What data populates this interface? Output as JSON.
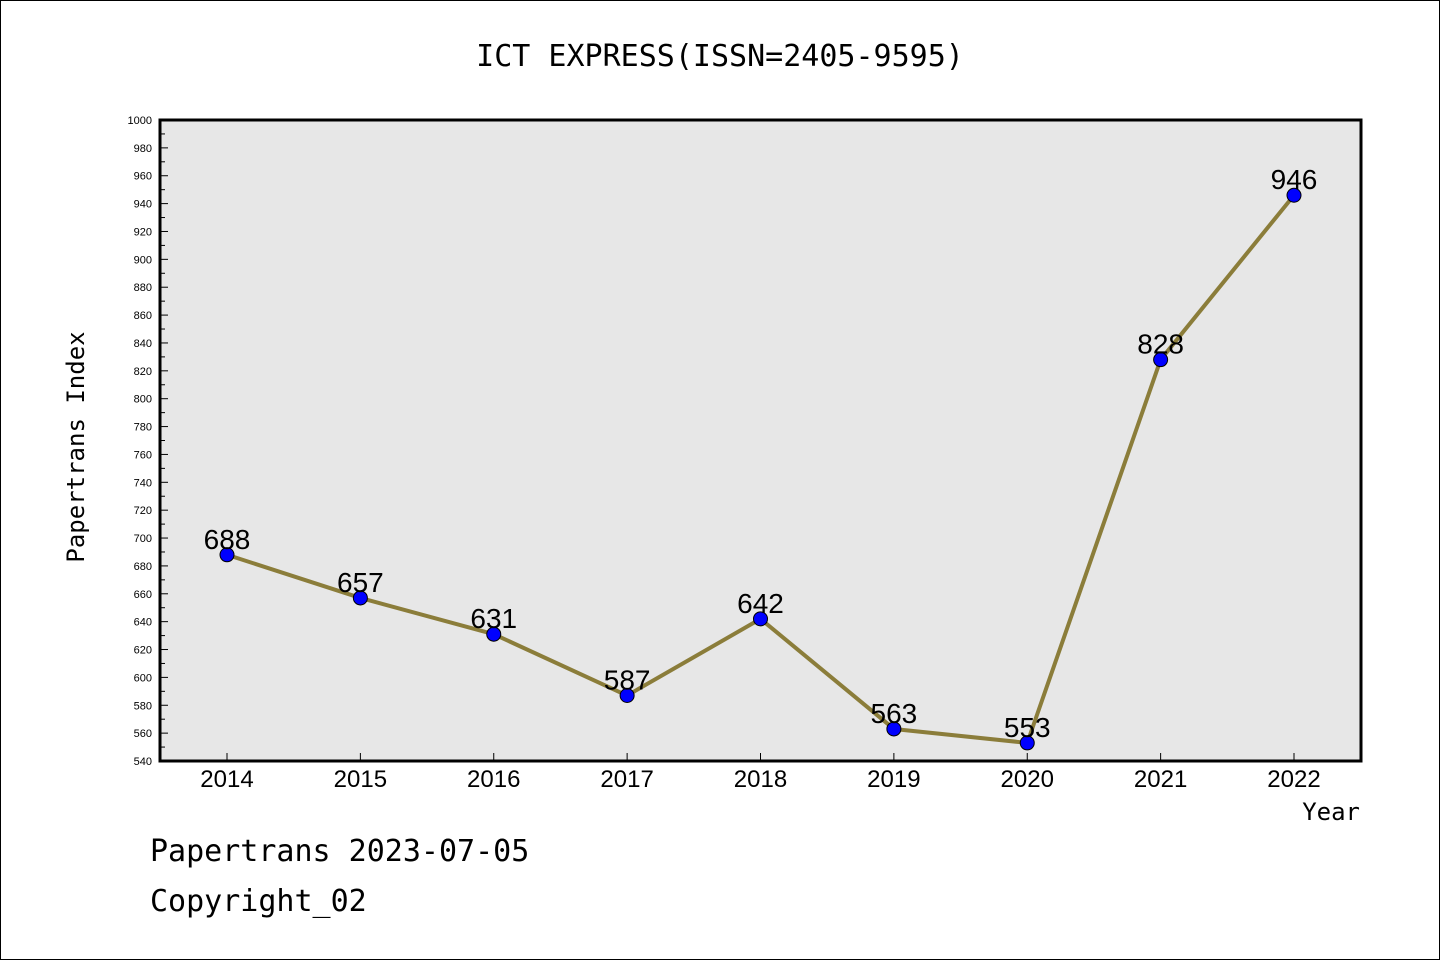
{
  "chart_data": {
    "type": "line",
    "title": "ICT EXPRESS(ISSN=2405-9595)",
    "xlabel": "Year",
    "ylabel": "Papertrans Index",
    "categories": [
      "2014",
      "2015",
      "2016",
      "2017",
      "2018",
      "2019",
      "2020",
      "2021",
      "2022"
    ],
    "series": [
      {
        "values": [
          688,
          657,
          631,
          587,
          642,
          563,
          553,
          828,
          946
        ]
      }
    ],
    "ylim": [
      540,
      1000
    ],
    "ytick_step": 20,
    "line_color": "#8b7d3a",
    "marker_color": "#0000ff",
    "plot_background": "#e7e7e7",
    "grid": false,
    "legend": "none"
  },
  "footer": {
    "line1": "Papertrans 2023-07-05",
    "line2": "Copyright_02"
  }
}
